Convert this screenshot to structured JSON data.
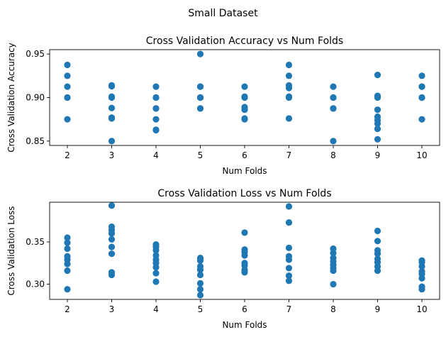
{
  "figure": {
    "suptitle": "Small Dataset"
  },
  "chart_data": [
    {
      "type": "scatter",
      "title": "Cross Validation Accuracy vs Num Folds",
      "xlabel": "Num Folds",
      "ylabel": "Cross Validation Accuracy",
      "xlim": [
        1.6,
        10.4
      ],
      "ylim": [
        0.845,
        0.955
      ],
      "xticks": [
        2,
        3,
        4,
        5,
        6,
        7,
        8,
        9,
        10
      ],
      "yticks": [
        0.85,
        0.9,
        0.95
      ],
      "ytick_labels": [
        "0.85",
        "0.90",
        "0.95"
      ],
      "grid": false,
      "marker_color": "#1f77b4",
      "points": [
        {
          "x": 2,
          "y": 0.9375
        },
        {
          "x": 2,
          "y": 0.925
        },
        {
          "x": 2,
          "y": 0.9125
        },
        {
          "x": 2,
          "y": 0.9
        },
        {
          "x": 2,
          "y": 0.9
        },
        {
          "x": 2,
          "y": 0.875
        },
        {
          "x": 3,
          "y": 0.914
        },
        {
          "x": 3,
          "y": 0.913
        },
        {
          "x": 3,
          "y": 0.901
        },
        {
          "x": 3,
          "y": 0.9
        },
        {
          "x": 3,
          "y": 0.888
        },
        {
          "x": 3,
          "y": 0.877
        },
        {
          "x": 3,
          "y": 0.876
        },
        {
          "x": 3,
          "y": 0.85
        },
        {
          "x": 4,
          "y": 0.9125
        },
        {
          "x": 4,
          "y": 0.9
        },
        {
          "x": 4,
          "y": 0.9
        },
        {
          "x": 4,
          "y": 0.8875
        },
        {
          "x": 4,
          "y": 0.8875
        },
        {
          "x": 4,
          "y": 0.875
        },
        {
          "x": 4,
          "y": 0.8625
        },
        {
          "x": 4,
          "y": 0.863
        },
        {
          "x": 5,
          "y": 0.95
        },
        {
          "x": 5,
          "y": 0.9125
        },
        {
          "x": 5,
          "y": 0.9125
        },
        {
          "x": 5,
          "y": 0.9
        },
        {
          "x": 5,
          "y": 0.9
        },
        {
          "x": 5,
          "y": 0.9
        },
        {
          "x": 5,
          "y": 0.8875
        },
        {
          "x": 5,
          "y": 0.8875
        },
        {
          "x": 6,
          "y": 0.9125
        },
        {
          "x": 6,
          "y": 0.901
        },
        {
          "x": 6,
          "y": 0.9
        },
        {
          "x": 6,
          "y": 0.889
        },
        {
          "x": 6,
          "y": 0.886
        },
        {
          "x": 6,
          "y": 0.876
        },
        {
          "x": 6,
          "y": 0.875
        },
        {
          "x": 7,
          "y": 0.9375
        },
        {
          "x": 7,
          "y": 0.925
        },
        {
          "x": 7,
          "y": 0.914
        },
        {
          "x": 7,
          "y": 0.911
        },
        {
          "x": 7,
          "y": 0.901
        },
        {
          "x": 7,
          "y": 0.9
        },
        {
          "x": 7,
          "y": 0.876
        },
        {
          "x": 8,
          "y": 0.9125
        },
        {
          "x": 8,
          "y": 0.9
        },
        {
          "x": 8,
          "y": 0.9
        },
        {
          "x": 8,
          "y": 0.8875
        },
        {
          "x": 8,
          "y": 0.8875
        },
        {
          "x": 8,
          "y": 0.85
        },
        {
          "x": 9,
          "y": 0.926
        },
        {
          "x": 9,
          "y": 0.902
        },
        {
          "x": 9,
          "y": 0.9
        },
        {
          "x": 9,
          "y": 0.886
        },
        {
          "x": 9,
          "y": 0.878
        },
        {
          "x": 9,
          "y": 0.874
        },
        {
          "x": 9,
          "y": 0.87
        },
        {
          "x": 9,
          "y": 0.864
        },
        {
          "x": 9,
          "y": 0.852
        },
        {
          "x": 10,
          "y": 0.925
        },
        {
          "x": 10,
          "y": 0.9125
        },
        {
          "x": 10,
          "y": 0.9125
        },
        {
          "x": 10,
          "y": 0.9
        },
        {
          "x": 10,
          "y": 0.9
        },
        {
          "x": 10,
          "y": 0.875
        }
      ]
    },
    {
      "type": "scatter",
      "title": "Cross Validation Loss vs Num Folds",
      "xlabel": "Num Folds",
      "ylabel": "Cross Validation Loss",
      "xlim": [
        1.6,
        10.4
      ],
      "ylim": [
        0.282,
        0.397
      ],
      "xticks": [
        2,
        3,
        4,
        5,
        6,
        7,
        8,
        9,
        10
      ],
      "yticks": [
        0.3,
        0.35
      ],
      "ytick_labels": [
        "0.30",
        "0.35"
      ],
      "grid": false,
      "marker_color": "#1f77b4",
      "points": [
        {
          "x": 2,
          "y": 0.355
        },
        {
          "x": 2,
          "y": 0.349
        },
        {
          "x": 2,
          "y": 0.342
        },
        {
          "x": 2,
          "y": 0.333
        },
        {
          "x": 2,
          "y": 0.329
        },
        {
          "x": 2,
          "y": 0.324
        },
        {
          "x": 2,
          "y": 0.316
        },
        {
          "x": 2,
          "y": 0.294
        },
        {
          "x": 3,
          "y": 0.393
        },
        {
          "x": 3,
          "y": 0.368
        },
        {
          "x": 3,
          "y": 0.364
        },
        {
          "x": 3,
          "y": 0.36
        },
        {
          "x": 3,
          "y": 0.353
        },
        {
          "x": 3,
          "y": 0.344
        },
        {
          "x": 3,
          "y": 0.336
        },
        {
          "x": 3,
          "y": 0.314
        },
        {
          "x": 3,
          "y": 0.311
        },
        {
          "x": 4,
          "y": 0.347
        },
        {
          "x": 4,
          "y": 0.344
        },
        {
          "x": 4,
          "y": 0.34
        },
        {
          "x": 4,
          "y": 0.334
        },
        {
          "x": 4,
          "y": 0.329
        },
        {
          "x": 4,
          "y": 0.325
        },
        {
          "x": 4,
          "y": 0.32
        },
        {
          "x": 4,
          "y": 0.313
        },
        {
          "x": 4,
          "y": 0.303
        },
        {
          "x": 5,
          "y": 0.331
        },
        {
          "x": 5,
          "y": 0.328
        },
        {
          "x": 5,
          "y": 0.321
        },
        {
          "x": 5,
          "y": 0.317
        },
        {
          "x": 5,
          "y": 0.311
        },
        {
          "x": 5,
          "y": 0.301
        },
        {
          "x": 5,
          "y": 0.294
        },
        {
          "x": 5,
          "y": 0.287
        },
        {
          "x": 6,
          "y": 0.361
        },
        {
          "x": 6,
          "y": 0.341
        },
        {
          "x": 6,
          "y": 0.338
        },
        {
          "x": 6,
          "y": 0.334
        },
        {
          "x": 6,
          "y": 0.325
        },
        {
          "x": 6,
          "y": 0.322
        },
        {
          "x": 6,
          "y": 0.317
        },
        {
          "x": 6,
          "y": 0.314
        },
        {
          "x": 7,
          "y": 0.392
        },
        {
          "x": 7,
          "y": 0.373
        },
        {
          "x": 7,
          "y": 0.343
        },
        {
          "x": 7,
          "y": 0.333
        },
        {
          "x": 7,
          "y": 0.329
        },
        {
          "x": 7,
          "y": 0.319
        },
        {
          "x": 7,
          "y": 0.31
        },
        {
          "x": 7,
          "y": 0.304
        },
        {
          "x": 8,
          "y": 0.342
        },
        {
          "x": 8,
          "y": 0.337
        },
        {
          "x": 8,
          "y": 0.331
        },
        {
          "x": 8,
          "y": 0.327
        },
        {
          "x": 8,
          "y": 0.323
        },
        {
          "x": 8,
          "y": 0.319
        },
        {
          "x": 8,
          "y": 0.316
        },
        {
          "x": 8,
          "y": 0.3
        },
        {
          "x": 9,
          "y": 0.363
        },
        {
          "x": 9,
          "y": 0.351
        },
        {
          "x": 9,
          "y": 0.34
        },
        {
          "x": 9,
          "y": 0.336
        },
        {
          "x": 9,
          "y": 0.33
        },
        {
          "x": 9,
          "y": 0.326
        },
        {
          "x": 9,
          "y": 0.321
        },
        {
          "x": 9,
          "y": 0.316
        },
        {
          "x": 10,
          "y": 0.328
        },
        {
          "x": 10,
          "y": 0.326
        },
        {
          "x": 10,
          "y": 0.321
        },
        {
          "x": 10,
          "y": 0.315
        },
        {
          "x": 10,
          "y": 0.312
        },
        {
          "x": 10,
          "y": 0.307
        },
        {
          "x": 10,
          "y": 0.297
        },
        {
          "x": 10,
          "y": 0.294
        }
      ]
    }
  ]
}
